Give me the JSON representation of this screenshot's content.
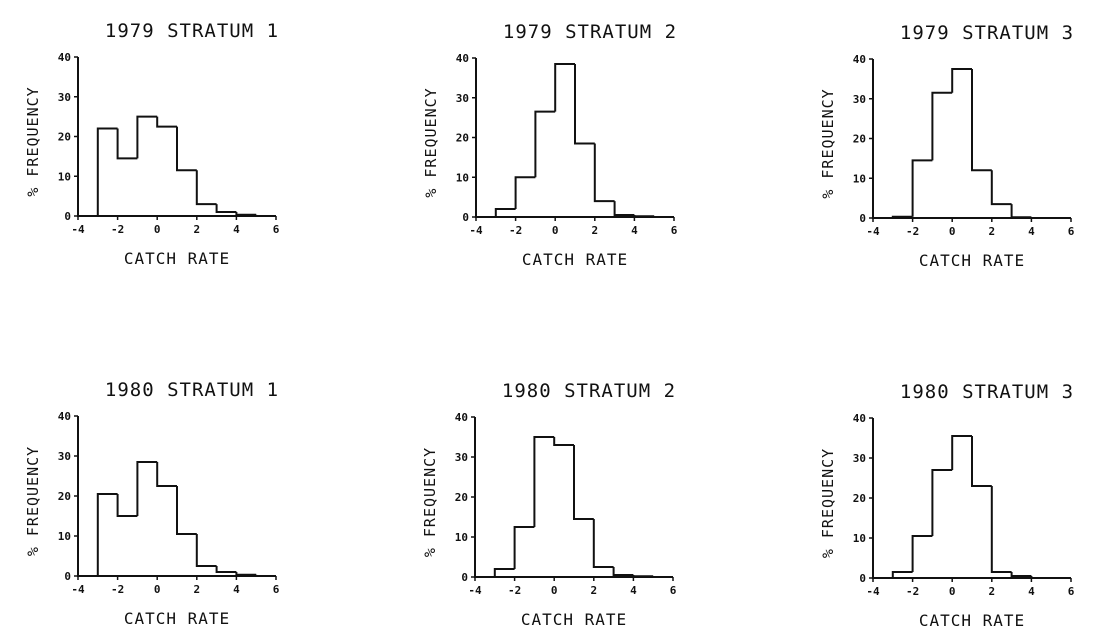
{
  "chart_data": [
    {
      "type": "bar",
      "title": "1979 STRATUM 1",
      "xlabel": "CATCH RATE",
      "ylabel": "% FREQUENCY",
      "xlim": [
        -4,
        6
      ],
      "ylim": [
        0,
        40
      ],
      "xticks": [
        "-4",
        "-2",
        "0",
        "2",
        "4",
        "6"
      ],
      "yticks": [
        "0",
        "10",
        "20",
        "30",
        "40"
      ],
      "bin_edges": [
        -3,
        -2,
        -1,
        0,
        1,
        2,
        3,
        4,
        5
      ],
      "values": [
        22,
        14.5,
        25,
        22.5,
        11.5,
        3,
        1,
        0.3
      ]
    },
    {
      "type": "bar",
      "title": "1979 STRATUM 2",
      "xlabel": "CATCH RATE",
      "ylabel": "% FREQUENCY",
      "xlim": [
        -4,
        6
      ],
      "ylim": [
        0,
        40
      ],
      "xticks": [
        "-4",
        "-2",
        "0",
        "2",
        "4",
        "6"
      ],
      "yticks": [
        "0",
        "10",
        "20",
        "30",
        "40"
      ],
      "bin_edges": [
        -3,
        -2,
        -1,
        0,
        1,
        2,
        3,
        4,
        5
      ],
      "values": [
        2,
        10,
        26.5,
        38.5,
        18.5,
        4,
        0.5,
        0.2
      ]
    },
    {
      "type": "bar",
      "title": "1979 STRATUM 3",
      "xlabel": "CATCH RATE",
      "ylabel": "% FREQUENCY",
      "xlim": [
        -4,
        6
      ],
      "ylim": [
        0,
        40
      ],
      "xticks": [
        "-4",
        "-2",
        "0",
        "2",
        "4",
        "6"
      ],
      "yticks": [
        "0",
        "10",
        "20",
        "30",
        "40"
      ],
      "bin_edges": [
        -3,
        -2,
        -1,
        0,
        1,
        2,
        3,
        4
      ],
      "values": [
        0.3,
        14.5,
        31.5,
        37.5,
        12,
        3.5,
        0.2
      ]
    },
    {
      "type": "bar",
      "title": "1980 STRATUM 1",
      "xlabel": "CATCH RATE",
      "ylabel": "% FREQUENCY",
      "xlim": [
        -4,
        6
      ],
      "ylim": [
        0,
        40
      ],
      "xticks": [
        "-4",
        "-2",
        "0",
        "2",
        "4",
        "6"
      ],
      "yticks": [
        "0",
        "10",
        "20",
        "30",
        "40"
      ],
      "bin_edges": [
        -3,
        -2,
        -1,
        0,
        1,
        2,
        3,
        4,
        5
      ],
      "values": [
        20.5,
        15,
        28.5,
        22.5,
        10.5,
        2.5,
        1,
        0.3
      ]
    },
    {
      "type": "bar",
      "title": "1980 STRATUM 2",
      "xlabel": "CATCH RATE",
      "ylabel": "% FREQUENCY",
      "xlim": [
        -4,
        6
      ],
      "ylim": [
        0,
        40
      ],
      "xticks": [
        "-4",
        "-2",
        "0",
        "2",
        "4",
        "6"
      ],
      "yticks": [
        "0",
        "10",
        "20",
        "30",
        "40"
      ],
      "bin_edges": [
        -3,
        -2,
        -1,
        0,
        1,
        2,
        3,
        4,
        5
      ],
      "values": [
        2,
        12.5,
        35,
        33,
        14.5,
        2.5,
        0.5,
        0.2
      ]
    },
    {
      "type": "bar",
      "title": "1980 STRATUM 3",
      "xlabel": "CATCH RATE",
      "ylabel": "% FREQUENCY",
      "xlim": [
        -4,
        6
      ],
      "ylim": [
        0,
        40
      ],
      "xticks": [
        "-4",
        "-2",
        "0",
        "2",
        "4",
        "6"
      ],
      "yticks": [
        "0",
        "10",
        "20",
        "30",
        "40"
      ],
      "bin_edges": [
        -3,
        -2,
        -1,
        0,
        1,
        2,
        3,
        4
      ],
      "values": [
        1.5,
        10.5,
        27,
        35.5,
        23,
        1.5,
        0.5
      ]
    }
  ]
}
